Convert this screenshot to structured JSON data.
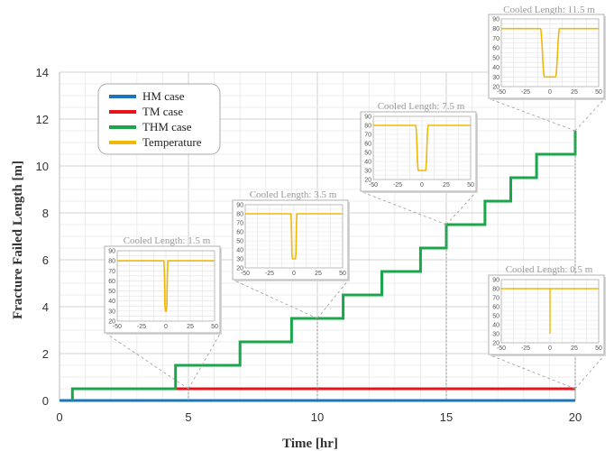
{
  "chart_data": {
    "type": "line",
    "xlabel": "Time [hr]",
    "ylabel": "Fracture Failed Length [m]",
    "xlim": [
      0,
      20
    ],
    "ylim": [
      0,
      14
    ],
    "xticks": [
      "0",
      "5",
      "10",
      "15",
      "20"
    ],
    "yticks": [
      "0",
      "2",
      "4",
      "6",
      "8",
      "10",
      "12",
      "14"
    ],
    "grid": true,
    "legend_position": "top-left",
    "series": [
      {
        "name": "HM case",
        "color": "#1a75bc",
        "x": [
          0,
          20
        ],
        "y": [
          0,
          0
        ]
      },
      {
        "name": "TM case",
        "color": "#e8121b",
        "x": [
          0.5,
          20
        ],
        "y": [
          0.5,
          0.5
        ]
      },
      {
        "name": "THM case",
        "color": "#1aa64b",
        "x": [
          0.5,
          0.5,
          4.5,
          4.5,
          7,
          7,
          9,
          9,
          11,
          11,
          12.5,
          12.5,
          14,
          14,
          15,
          15,
          16.5,
          16.5,
          17.5,
          17.5,
          18.5,
          18.5,
          20,
          20
        ],
        "y": [
          0,
          0.5,
          0.5,
          1.5,
          1.5,
          2.5,
          2.5,
          3.5,
          3.5,
          4.5,
          4.5,
          5.5,
          5.5,
          6.5,
          6.5,
          7.5,
          7.5,
          8.5,
          8.5,
          9.5,
          9.5,
          10.5,
          10.5,
          11.5
        ]
      },
      {
        "name": "Temperature",
        "color": "#f2b705",
        "x": [],
        "y": []
      }
    ],
    "insets": [
      {
        "title": "Cooled Length: 1.5 m",
        "cooled_length": 1.5,
        "at_time": 5,
        "at_value": 0.5,
        "xlim": [
          -50,
          50
        ],
        "ylim": [
          20,
          90
        ],
        "xticks": [
          "-50",
          "-25",
          "0",
          "25",
          "50"
        ],
        "yticks": [
          "20",
          "30",
          "40",
          "50",
          "60",
          "70",
          "80",
          "90"
        ],
        "min_temp": 30
      },
      {
        "title": "Cooled Length: 3.5 m",
        "cooled_length": 3.5,
        "at_time": 10,
        "at_value": 3.5,
        "xlim": [
          -50,
          50
        ],
        "ylim": [
          20,
          90
        ],
        "xticks": [
          "-50",
          "-25",
          "0",
          "25",
          "50"
        ],
        "yticks": [
          "20",
          "30",
          "40",
          "50",
          "60",
          "70",
          "80",
          "90"
        ],
        "min_temp": 30
      },
      {
        "title": "Cooled Length: 7.5 m",
        "cooled_length": 7.5,
        "at_time": 15,
        "at_value": 7.5,
        "xlim": [
          -50,
          50
        ],
        "ylim": [
          20,
          90
        ],
        "xticks": [
          "-50",
          "-25",
          "0",
          "25",
          "50"
        ],
        "yticks": [
          "20",
          "30",
          "40",
          "50",
          "60",
          "70",
          "80",
          "90"
        ],
        "min_temp": 30
      },
      {
        "title": "Cooled Length: 11.5 m",
        "cooled_length": 11.5,
        "at_time": 20,
        "at_value": 11.5,
        "xlim": [
          -50,
          50
        ],
        "ylim": [
          20,
          90
        ],
        "xticks": [
          "-50",
          "-25",
          "0",
          "25",
          "50"
        ],
        "yticks": [
          "20",
          "30",
          "40",
          "50",
          "60",
          "70",
          "80",
          "90"
        ],
        "min_temp": 30
      },
      {
        "title": "Cooled Length: 0.5 m",
        "cooled_length": 0.5,
        "at_time": 20,
        "at_value": 0.5,
        "xlim": [
          -50,
          50
        ],
        "ylim": [
          20,
          90
        ],
        "xticks": [
          "-50",
          "-25",
          "0",
          "25",
          "50"
        ],
        "yticks": [
          "20",
          "30",
          "40",
          "50",
          "60",
          "70",
          "80",
          "90"
        ],
        "min_temp": 30
      }
    ]
  }
}
